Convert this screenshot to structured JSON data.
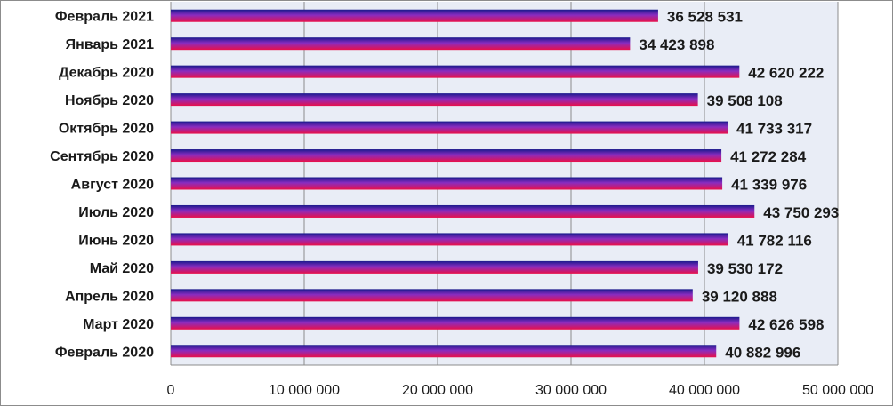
{
  "chart_data": {
    "type": "bar",
    "orientation": "horizontal",
    "categories": [
      "Февраль 2021",
      "Январь 2021",
      "Декабрь 2020",
      "Ноябрь 2020",
      "Октябрь 2020",
      "Сентябрь 2020",
      "Август 2020",
      "Июль 2020",
      "Июнь 2020",
      "Май 2020",
      "Апрель 2020",
      "Март 2020",
      "Февраль 2020"
    ],
    "values": [
      36528531,
      34423898,
      42620222,
      39508108,
      41733317,
      41272284,
      41339976,
      43750293,
      41782116,
      39530172,
      39120888,
      42626598,
      40882996
    ],
    "value_labels": [
      "36 528 531",
      "34 423 898",
      "42 620 222",
      "39 508 108",
      "41 733 317",
      "41 272 284",
      "41 339 976",
      "43 750 293",
      "41 782 116",
      "39 530 172",
      "39 120 888",
      "42 626 598",
      "40 882 996"
    ],
    "xlim": [
      0,
      50000000
    ],
    "xticks": [
      0,
      10000000,
      20000000,
      30000000,
      40000000,
      50000000
    ],
    "xtick_labels": [
      "0",
      "10 000 000",
      "20 000 000",
      "30 000 000",
      "40 000 000",
      "50 000 000"
    ],
    "grid": "vertical",
    "legend": "none",
    "colors": {
      "bar_top": "#1a1a8c",
      "bar_mid": "#8a2cc0",
      "bar_bottom": "#e8104a",
      "plot_background": "#e9edf6",
      "gridline": "#8c8c8c"
    }
  }
}
